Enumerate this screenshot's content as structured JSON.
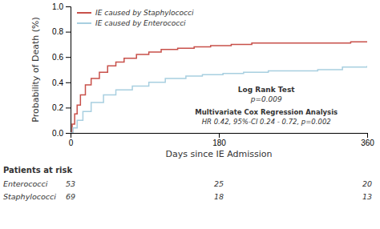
{
  "chart_data": {
    "type": "step",
    "xlabel": "Days since IE Admission",
    "ylabel": "Probability of Death (%)",
    "xlim": [
      0,
      360
    ],
    "ylim": [
      0,
      1.0
    ],
    "xticks": [
      0,
      180,
      360
    ],
    "yticks": [
      {
        "value": 0.0,
        "label": "0.0"
      },
      0.2,
      0.4,
      0.6,
      0.8,
      {
        "value": 1.0,
        "label": "1.0"
      }
    ],
    "grid": false,
    "legend": "upper left",
    "series": [
      {
        "name": "IE caused by Staphylococci",
        "color": "#c8504a",
        "x": [
          0,
          2,
          5,
          8,
          12,
          18,
          25,
          35,
          45,
          55,
          65,
          80,
          95,
          110,
          130,
          150,
          170,
          195,
          220,
          250,
          280,
          310,
          340,
          360
        ],
        "values": [
          0.0,
          0.07,
          0.15,
          0.22,
          0.3,
          0.38,
          0.43,
          0.48,
          0.53,
          0.56,
          0.59,
          0.62,
          0.64,
          0.66,
          0.67,
          0.68,
          0.69,
          0.7,
          0.71,
          0.71,
          0.71,
          0.71,
          0.72,
          0.72
        ]
      },
      {
        "name": "IE caused by Enterococci",
        "color": "#a8cfe0",
        "x": [
          0,
          3,
          8,
          15,
          25,
          40,
          55,
          75,
          95,
          115,
          140,
          160,
          185,
          210,
          240,
          270,
          300,
          330,
          360
        ],
        "values": [
          0.0,
          0.04,
          0.1,
          0.17,
          0.24,
          0.3,
          0.34,
          0.37,
          0.4,
          0.43,
          0.45,
          0.46,
          0.47,
          0.48,
          0.49,
          0.49,
          0.5,
          0.52,
          0.53
        ]
      }
    ],
    "annotations": [
      "Log Rank Test",
      "p=0.009",
      "Multivariate Cox Regression Analysis",
      "HR 0.42, 95%-CI 0.24 - 0.72, p=0.002"
    ],
    "risk_table": {
      "title": "Patients at risk",
      "x": [
        0,
        180,
        360
      ],
      "rows": [
        {
          "name": "Enterococci",
          "values": [
            53,
            25,
            20
          ]
        },
        {
          "name": "Staphylococci",
          "values": [
            69,
            18,
            13
          ]
        }
      ]
    }
  }
}
